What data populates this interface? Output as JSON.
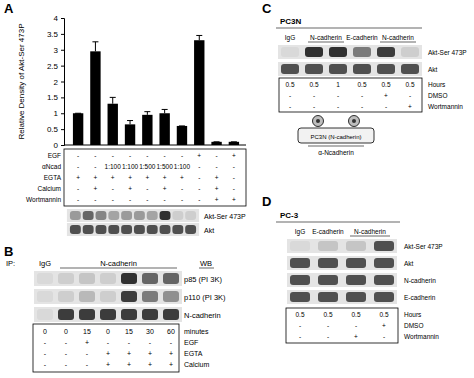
{
  "chart_data": {
    "type": "bar",
    "y_label": "Relative Density of Akt-Ser 473P",
    "categories": [
      null,
      null,
      null,
      null,
      null,
      null,
      null,
      null,
      null,
      null
    ],
    "values": [
      1,
      2.95,
      1.3,
      0.65,
      0.95,
      1,
      0.6,
      3.3,
      0.1,
      0.1
    ],
    "errors": [
      0,
      0.3,
      0.2,
      0.12,
      0.1,
      0.12,
      0,
      0.15,
      0,
      0
    ],
    "color": "#000000",
    "ylim": [
      0,
      4
    ],
    "yticks": [
      0,
      0.5,
      1,
      1.5,
      2,
      2.5,
      3,
      3.5,
      4
    ],
    "tick_labels": "y"
  },
  "panel_a": {
    "label": "A",
    "conditions": [
      {
        "label": "EGF",
        "values": [
          "-",
          "-",
          "-",
          "-",
          "-",
          "-",
          "-",
          "+",
          "-",
          "+"
        ]
      },
      {
        "label": "αNcad",
        "values": [
          "-",
          "-",
          "1:100",
          "1:100",
          "1:500",
          "1:500",
          "1:100",
          "-",
          "-",
          "-"
        ]
      },
      {
        "label": "EGTA",
        "values": [
          "+",
          "+",
          "+",
          "+",
          "+",
          "+",
          "+",
          "-",
          "+",
          "-"
        ]
      },
      {
        "label": "Calcium",
        "values": [
          "-",
          "+",
          "-",
          "+",
          "-",
          "+",
          "-",
          "-",
          "+",
          "-"
        ]
      },
      {
        "label": "Wortmannin",
        "values": [
          "-",
          "-",
          "-",
          "-",
          "-",
          "-",
          "-",
          "-",
          "+",
          "+"
        ]
      }
    ],
    "blot": [
      {
        "label": "Akt-Ser 473P",
        "band_intensity": [
          0.35,
          0.6,
          0.45,
          0.3,
          0.35,
          0.35,
          0.3,
          0.85,
          0.1,
          0.1
        ]
      },
      {
        "label": "Akt",
        "band_intensity": [
          0.7,
          0.7,
          0.7,
          0.7,
          0.7,
          0.7,
          0.7,
          0.7,
          0.7,
          0.7
        ]
      }
    ]
  },
  "panel_b": {
    "label": "B",
    "ip_label": "IP:",
    "wb_label": "WB",
    "groups": [
      {
        "label": "IgG",
        "lane_count": 1
      },
      {
        "label": "N-cadherin",
        "lane_count": 6
      }
    ],
    "blot": [
      {
        "label": "p85 (PI 3K)",
        "band_intensity": [
          0.05,
          0.1,
          0.15,
          0.1,
          0.85,
          0.6,
          0.6
        ]
      },
      {
        "label": "p110 (PI 3K)",
        "band_intensity": [
          0.05,
          0.1,
          0.2,
          0.1,
          0.8,
          0.5,
          0.4
        ]
      },
      {
        "label": "N-cadherin",
        "band_intensity": [
          0.05,
          0.8,
          0.8,
          0.8,
          0.8,
          0.8,
          0.8
        ]
      }
    ],
    "conditions": [
      {
        "label": "minutes",
        "values": [
          0,
          0,
          15,
          0,
          15,
          30,
          60
        ]
      },
      {
        "label": "EGF",
        "values": [
          "-",
          "-",
          "+",
          "-",
          "-",
          "-",
          "-"
        ]
      },
      {
        "label": "EGTA",
        "values": [
          "-",
          "-",
          "-",
          "+",
          "+",
          "+",
          "+"
        ]
      },
      {
        "label": "Calcium",
        "values": [
          "-",
          "-",
          "-",
          "+",
          "+",
          "+",
          "+"
        ]
      }
    ]
  },
  "panel_c": {
    "label": "C",
    "cell_line": "PC3N",
    "groups": [
      {
        "label": "IgG",
        "lane_count": 1
      },
      {
        "label": "N-cadherin",
        "lane_count": 2
      },
      {
        "label": "E-cadherin",
        "lane_count": 1
      },
      {
        "label": "N-cadherin",
        "lane_count": 2
      }
    ],
    "blot": [
      {
        "label": "Akt-Ser 473P",
        "band_intensity": [
          0.05,
          0.85,
          0.85,
          0.5,
          0.8,
          0.1
        ]
      },
      {
        "label": "Akt",
        "band_intensity": [
          0.7,
          0.7,
          0.7,
          0.7,
          0.7,
          0.7
        ]
      }
    ],
    "conditions": [
      {
        "label": "Hours",
        "values": [
          0.5,
          0.5,
          1,
          0.5,
          0.5,
          0.5
        ]
      },
      {
        "label": "DMSO",
        "values": [
          "-",
          "-",
          "-",
          "-",
          "+",
          "-"
        ]
      },
      {
        "label": "Wortmannin",
        "values": [
          "-",
          "-",
          "-",
          "-",
          "-",
          "+"
        ]
      }
    ],
    "cartoon": {
      "cell_label": "PC3N (N-cadherin)",
      "antibody_label": "α-Ncadherin"
    }
  },
  "panel_d": {
    "label": "D",
    "cell_line": "PC-3",
    "groups": [
      {
        "label": "IgG",
        "lane_count": 1
      },
      {
        "label": "E-cadherin",
        "lane_count": 1
      },
      {
        "label": "N-cadherin",
        "lane_count": 2
      }
    ],
    "blot": [
      {
        "label": "Akt-Ser 473P",
        "band_intensity": [
          0.05,
          0.15,
          0.15,
          0.7
        ]
      },
      {
        "label": "Akt",
        "band_intensity": [
          0.7,
          0.7,
          0.7,
          0.7
        ]
      },
      {
        "label": "N-cadherin",
        "band_intensity": [
          0.7,
          0.7,
          0.7,
          0.7
        ]
      },
      {
        "label": "E-cadherin",
        "band_intensity": [
          0.7,
          0.7,
          0.7,
          0.7
        ]
      }
    ],
    "conditions": [
      {
        "label": "Hours",
        "values": [
          0.5,
          0.5,
          0.5,
          0.5
        ]
      },
      {
        "label": "DMSO",
        "values": [
          "-",
          "-",
          "-",
          "+"
        ]
      },
      {
        "label": "Wortmannin",
        "values": [
          "-",
          "-",
          "+",
          "-"
        ]
      }
    ]
  }
}
